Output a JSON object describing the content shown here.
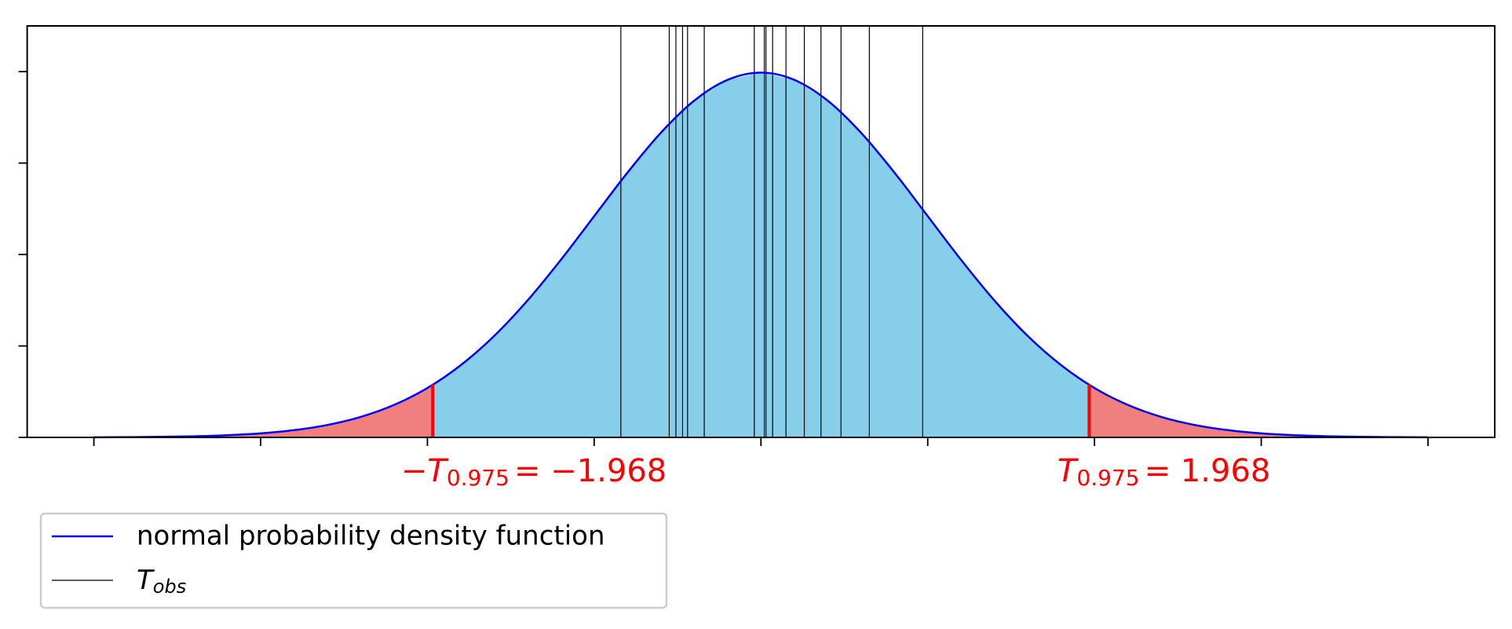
{
  "chart_data": {
    "type": "line",
    "xlim": [
      -4.4,
      4.4
    ],
    "ylim": [
      0,
      0.45
    ],
    "xticks": [
      -4,
      -3,
      -2,
      -1,
      0,
      1,
      2,
      3,
      4
    ],
    "yticks": [
      0,
      0.1,
      0.2,
      0.3,
      0.4
    ],
    "legend": "below left",
    "series": [
      {
        "name": "normal probability density function",
        "color": "#0000ff",
        "x": [
          -4,
          -3.8,
          -3.6,
          -3.4,
          -3.2,
          -3,
          -2.8,
          -2.6,
          -2.4,
          -2.2,
          -2,
          -1.8,
          -1.6,
          -1.4,
          -1.2,
          -1,
          -0.8,
          -0.6,
          -0.4,
          -0.2,
          0,
          0.2,
          0.4,
          0.6,
          0.8,
          1,
          1.2,
          1.4,
          1.6,
          1.8,
          2,
          2.2,
          2.4,
          2.6,
          2.8,
          3,
          3.2,
          3.4,
          3.6,
          3.8,
          4
        ],
        "values": [
          0.0001,
          0.0003,
          0.0006,
          0.0012,
          0.0024,
          0.0044,
          0.0079,
          0.0136,
          0.0224,
          0.0355,
          0.054,
          0.079,
          0.1109,
          0.1497,
          0.1942,
          0.242,
          0.2897,
          0.3332,
          0.3683,
          0.391,
          0.3989,
          0.391,
          0.3683,
          0.3332,
          0.2897,
          0.242,
          0.1942,
          0.1497,
          0.1109,
          0.079,
          0.054,
          0.0355,
          0.0224,
          0.0136,
          0.0079,
          0.0044,
          0.0024,
          0.0012,
          0.0006,
          0.0003,
          0.0001
        ]
      }
    ],
    "observed": {
      "name": {
        "symbol": "T",
        "subscript": "obs"
      },
      "color": "#000000",
      "values": [
        -0.84,
        -0.55,
        -0.51,
        -0.47,
        -0.44,
        -0.34,
        -0.04,
        0.02,
        0.03,
        0.07,
        0.15,
        0.26,
        0.36,
        0.48,
        0.65,
        0.97
      ]
    },
    "critical": {
      "value": 1.968,
      "color": "#ff0000",
      "labels": [
        {
          "prefix": "−",
          "symbol": "T",
          "subscript": "0.975",
          "suffix": "= −1.968"
        },
        {
          "prefix": "",
          "symbol": "T",
          "subscript": "0.975",
          "suffix": "= 1.968"
        }
      ]
    },
    "fill_colors": {
      "acceptance": "#87ceeb",
      "rejection": "#f08080"
    }
  }
}
